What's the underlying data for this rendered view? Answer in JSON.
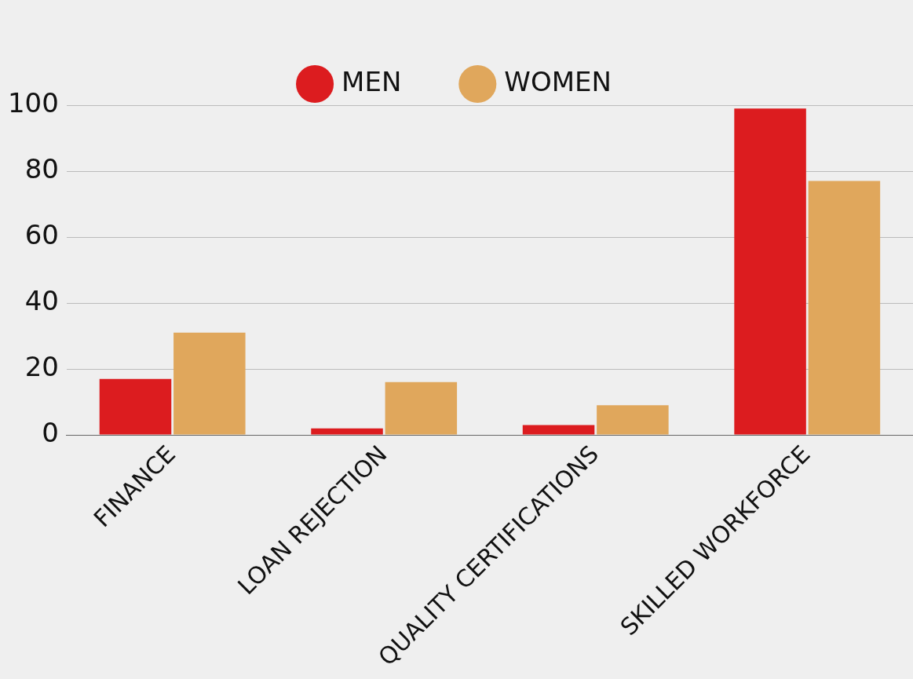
{
  "chart_data": {
    "type": "bar",
    "categories": [
      "FINANCE",
      "LOAN REJECTION",
      "QUALITY CERTIFICATIONS",
      "SKILLED WORKFORCE"
    ],
    "series": [
      {
        "name": "MEN",
        "color": "#dc1c1f",
        "values": [
          17,
          2,
          3,
          99
        ]
      },
      {
        "name": "WOMEN",
        "color": "#e0a75c",
        "values": [
          31,
          16,
          9,
          77
        ]
      }
    ],
    "ylim": [
      0,
      100
    ],
    "yticks": [
      0,
      20,
      40,
      60,
      80,
      100
    ],
    "grid": "y",
    "legend": "top"
  }
}
